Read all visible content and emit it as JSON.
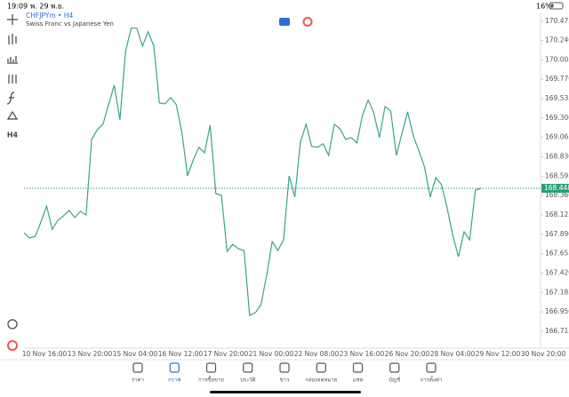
{
  "status_bar": {
    "time": "19:09",
    "date": "พ. 29 พ.ย.",
    "battery": "16%"
  },
  "chart_header": {
    "symbol": "CHFJPYm • H4",
    "description": "Swiss Franc vs Japanese Yen"
  },
  "toolbar": {
    "timeframe": "H4"
  },
  "chart_data": {
    "type": "line",
    "color": "#3aa67f",
    "values": [
      167.909,
      167.845,
      167.866,
      168.039,
      168.233,
      167.952,
      168.06,
      168.114,
      168.179,
      168.093,
      168.168,
      168.125,
      169.041,
      169.16,
      169.225,
      169.462,
      169.699,
      169.278,
      170.108,
      170.389,
      170.389,
      170.173,
      170.346,
      170.173,
      169.483,
      169.472,
      169.548,
      169.462,
      169.117,
      168.599,
      168.793,
      168.944,
      168.88,
      169.214,
      168.384,
      168.362,
      167.683,
      167.769,
      167.715,
      167.694,
      166.907,
      166.939,
      167.036,
      167.392,
      167.802,
      167.694,
      167.823,
      168.599,
      168.341,
      169.009,
      169.225,
      168.955,
      168.944,
      168.987,
      168.847,
      169.225,
      169.171,
      169.041,
      169.063,
      168.998,
      169.332,
      169.516,
      169.365,
      169.063,
      169.44,
      169.386,
      168.847,
      169.117,
      169.375,
      169.084,
      168.901,
      168.707,
      168.341,
      168.578,
      168.491,
      168.211,
      167.877,
      167.618,
      167.92,
      167.823,
      168.427,
      168.448
    ],
    "ylim": [
      166.51,
      170.58
    ],
    "yticks": [
      {
        "value": 170.475,
        "label": "170.475"
      },
      {
        "value": 170.24,
        "label": "170.240"
      },
      {
        "value": 170.005,
        "label": "170.005"
      },
      {
        "value": 169.77,
        "label": "169.770"
      },
      {
        "value": 169.535,
        "label": "169.535"
      },
      {
        "value": 169.3,
        "label": "169.300"
      },
      {
        "value": 169.065,
        "label": "169.065"
      },
      {
        "value": 168.83,
        "label": "168.830"
      },
      {
        "value": 168.595,
        "label": "168.595"
      },
      {
        "value": 168.36,
        "label": "168.360"
      },
      {
        "value": 168.125,
        "label": "168.125"
      },
      {
        "value": 167.89,
        "label": "167.890"
      },
      {
        "value": 167.655,
        "label": "167.655"
      },
      {
        "value": 167.42,
        "label": "167.420"
      },
      {
        "value": 167.185,
        "label": "167.185"
      },
      {
        "value": 166.95,
        "label": "166.950"
      },
      {
        "value": 166.715,
        "label": "166.715"
      }
    ],
    "current_price": {
      "value": 168.448,
      "label": "168.448"
    },
    "xtick_labels": [
      "10 Nov 16:00",
      "13 Nov 20:00",
      "15 Nov 04:00",
      "16 Nov 12:00",
      "17 Nov 20:00",
      "21 Nov 00:00",
      "22 Nov 08:00",
      "23 Nov 16:00",
      "26 Nov 20:00",
      "28 Nov 04:00",
      "29 Nov 12:00",
      "30 Nov 20:00"
    ]
  },
  "tabs": [
    "ราคา",
    "กราฟ",
    "การซื้อขาย",
    "ประวัติ",
    "ข่าว",
    "กล่องจดหมาย",
    "แชท",
    "บัญชี",
    "การตั้งค่า"
  ]
}
